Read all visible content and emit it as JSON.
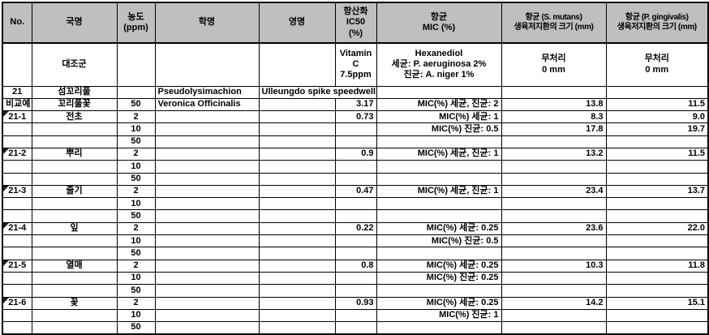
{
  "table": {
    "title": "plant-extract-assay-results",
    "colors": {
      "header_bg": "#bfbfbf",
      "border": "#000000",
      "comment_flag": "#1f1f1f",
      "text": "#000000"
    },
    "columns": [
      {
        "id": "no",
        "label": "No."
      },
      {
        "id": "kname",
        "label": "국명"
      },
      {
        "id": "conc",
        "label": "농도\n(ppm)"
      },
      {
        "id": "sciname",
        "label": "학명"
      },
      {
        "id": "engname",
        "label": "영명"
      },
      {
        "id": "ic50",
        "label": "항산화\nIC50\n(%)"
      },
      {
        "id": "mic",
        "label": "항균\nMIC (%)"
      },
      {
        "id": "smutans",
        "label": "항균 (S. mutans)\n생육저지환의 크기 (mm)"
      },
      {
        "id": "pgingivalis",
        "label": "항균 (P. gingivalis)\n생육저지환의 크기 (mm)"
      }
    ],
    "control_row": {
      "no": "",
      "kname": "대조군",
      "conc": "",
      "sciname": "",
      "engname": "",
      "ic50": "Vitamin\nC\n7.5ppm",
      "mic": "Hexanediol\n세균: P. aeruginosa 2%\n진균: A. niger 1%",
      "smutans": "무처리\n0 mm",
      "pgingivalis": "무처리\n0 mm"
    },
    "rows": [
      {
        "no": "21",
        "flag": false,
        "kname": "섬꼬리풀",
        "conc": "",
        "sciname": "Pseudolysimachion",
        "engname": "Ulleungdo spike speedwell",
        "engname_span": 2,
        "ic50": "",
        "mic": "",
        "smutans": "",
        "pgingivalis": ""
      },
      {
        "no": "비교예",
        "flag": false,
        "kname": "꼬리풀꽃",
        "conc": "50",
        "sciname": "Veronica Officinalis",
        "engname": "",
        "ic50": "3.17",
        "mic": "MIC(%) 세균, 진균: 2",
        "smutans": "13.8",
        "pgingivalis": "11.5"
      },
      {
        "no": "21-1",
        "flag": true,
        "kname": "전초",
        "conc": "2",
        "sciname": "",
        "engname": "",
        "ic50": "0.73",
        "mic": "MIC(%) 세균: 1",
        "smutans": "8.3",
        "pgingivalis": "9.0"
      },
      {
        "no": "",
        "flag": false,
        "kname": "",
        "conc": "10",
        "sciname": "",
        "engname": "",
        "ic50": "",
        "mic": "MIC(%) 진균: 0.5",
        "smutans": "17.8",
        "pgingivalis": "19.7"
      },
      {
        "no": "",
        "flag": false,
        "kname": "",
        "conc": "50",
        "sciname": "",
        "engname": "",
        "ic50": "",
        "mic": "",
        "smutans": "",
        "pgingivalis": ""
      },
      {
        "no": "21-2",
        "flag": true,
        "kname": "뿌리",
        "conc": "2",
        "sciname": "",
        "engname": "",
        "ic50": "0.9",
        "mic": "MIC(%) 세균, 진균: 1",
        "smutans": "13.2",
        "pgingivalis": "11.5"
      },
      {
        "no": "",
        "flag": false,
        "kname": "",
        "conc": "10",
        "sciname": "",
        "engname": "",
        "ic50": "",
        "mic": "",
        "smutans": "",
        "pgingivalis": ""
      },
      {
        "no": "",
        "flag": false,
        "kname": "",
        "conc": "50",
        "sciname": "",
        "engname": "",
        "ic50": "",
        "mic": "",
        "smutans": "",
        "pgingivalis": ""
      },
      {
        "no": "21-3",
        "flag": true,
        "kname": "줄기",
        "conc": "2",
        "sciname": "",
        "engname": "",
        "ic50": "0.47",
        "mic": "MIC(%) 세균, 진균: 1",
        "smutans": "23.4",
        "pgingivalis": "13.7"
      },
      {
        "no": "",
        "flag": false,
        "kname": "",
        "conc": "10",
        "sciname": "",
        "engname": "",
        "ic50": "",
        "mic": "",
        "smutans": "",
        "pgingivalis": ""
      },
      {
        "no": "",
        "flag": false,
        "kname": "",
        "conc": "50",
        "sciname": "",
        "engname": "",
        "ic50": "",
        "mic": "",
        "smutans": "",
        "pgingivalis": ""
      },
      {
        "no": "21-4",
        "flag": true,
        "kname": "잎",
        "conc": "2",
        "sciname": "",
        "engname": "",
        "ic50": "0.22",
        "mic": "MIC(%) 세균: 0.25",
        "smutans": "23.6",
        "pgingivalis": "22.0"
      },
      {
        "no": "",
        "flag": false,
        "kname": "",
        "conc": "10",
        "sciname": "",
        "engname": "",
        "ic50": "",
        "mic": "MIC(%) 진균: 0.5",
        "smutans": "",
        "pgingivalis": ""
      },
      {
        "no": "",
        "flag": false,
        "kname": "",
        "conc": "50",
        "sciname": "",
        "engname": "",
        "ic50": "",
        "mic": "",
        "smutans": "",
        "pgingivalis": ""
      },
      {
        "no": "21-5",
        "flag": true,
        "kname": "열매",
        "conc": "2",
        "sciname": "",
        "engname": "",
        "ic50": "0.8",
        "mic": "MIC(%) 세균: 0.25",
        "smutans": "10.3",
        "pgingivalis": "11.8"
      },
      {
        "no": "",
        "flag": false,
        "kname": "",
        "conc": "10",
        "sciname": "",
        "engname": "",
        "ic50": "",
        "mic": "MIC(%) 진균: 0.25",
        "smutans": "",
        "pgingivalis": ""
      },
      {
        "no": "",
        "flag": false,
        "kname": "",
        "conc": "50",
        "sciname": "",
        "engname": "",
        "ic50": "",
        "mic": "",
        "smutans": "",
        "pgingivalis": ""
      },
      {
        "no": "21-6",
        "flag": true,
        "kname": "꽃",
        "conc": "2",
        "sciname": "",
        "engname": "",
        "ic50": "0.93",
        "mic": "MIC(%) 세균: 0.25",
        "smutans": "14.2",
        "pgingivalis": "15.1"
      },
      {
        "no": "",
        "flag": false,
        "kname": "",
        "conc": "10",
        "sciname": "",
        "engname": "",
        "ic50": "",
        "mic": "MIC(%) 진균: 1",
        "smutans": "",
        "pgingivalis": ""
      },
      {
        "no": "",
        "flag": false,
        "kname": "",
        "conc": "50",
        "sciname": "",
        "engname": "",
        "ic50": "",
        "mic": "",
        "smutans": "",
        "pgingivalis": ""
      }
    ]
  }
}
